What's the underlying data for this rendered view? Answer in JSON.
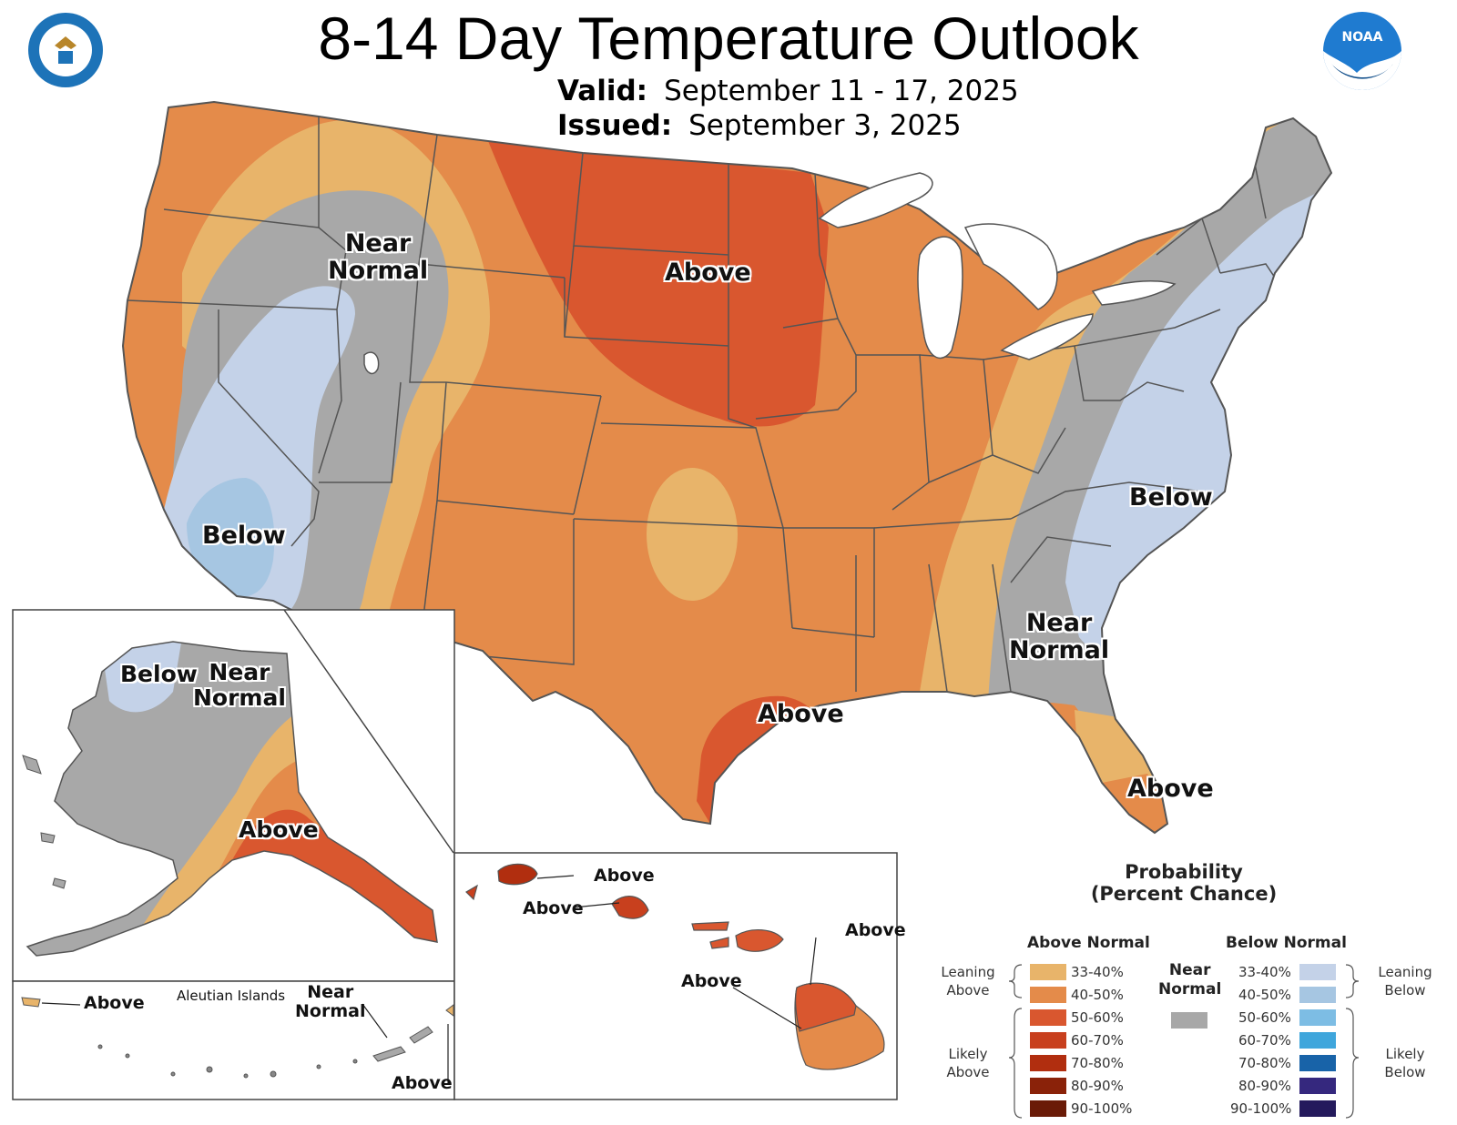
{
  "title": "8-14 Day Temperature Outlook",
  "valid_label": "Valid:",
  "valid_value": "September 11 - 17, 2025",
  "issued_label": "Issued:",
  "issued_value": "September 3, 2025",
  "logos": {
    "left": "department-of-commerce-seal",
    "right": "noaa-logo",
    "right_text": "NOAA"
  },
  "colors": {
    "above_33_40": "#e8b46a",
    "above_40_50": "#e48b4a",
    "above_50_60": "#d9572f",
    "above_60_70": "#c8401e",
    "above_70_80": "#b12e0f",
    "above_80_90": "#8a2209",
    "above_90_100": "#6a1b07",
    "near_normal": "#a8a8a8",
    "below_33_40": "#c4d2e8",
    "below_40_50": "#a6c6e2",
    "below_50_60": "#7dbde4",
    "below_60_70": "#3fa6dc",
    "below_70_80": "#1863a8",
    "below_80_90": "#35287e",
    "below_90_100": "#241a5c",
    "water": "#ffffff",
    "border": "#555555"
  },
  "conus_labels": {
    "near_normal_west_1": "Near",
    "near_normal_west_2": "Normal",
    "above_north": "Above",
    "below_west": "Below",
    "below_east": "Below",
    "near_normal_se_1": "Near",
    "near_normal_se_2": "Normal",
    "above_texas": "Above",
    "above_florida": "Above"
  },
  "alaska_labels": {
    "below": "Below",
    "near_1": "Near",
    "near_2": "Normal",
    "above": "Above"
  },
  "aleutian_labels": {
    "above_left": "Above",
    "title": "Aleutian Islands",
    "near_1": "Near",
    "near_2": "Normal",
    "above_right": "Above"
  },
  "hawaii_labels": {
    "kauai": "Above",
    "oahu": "Above",
    "maui": "Above",
    "big_island": "Above"
  },
  "legend": {
    "title_1": "Probability",
    "title_2": "(Percent Chance)",
    "above_header": "Above Normal",
    "below_header": "Below Normal",
    "near_header_1": "Near",
    "near_header_2": "Normal",
    "leaning_above_1": "Leaning",
    "leaning_above_2": "Above",
    "likely_above_1": "Likely",
    "likely_above_2": "Above",
    "leaning_below_1": "Leaning",
    "leaning_below_2": "Below",
    "likely_below_1": "Likely",
    "likely_below_2": "Below",
    "above_items": [
      "33-40%",
      "40-50%",
      "50-60%",
      "60-70%",
      "70-80%",
      "80-90%",
      "90-100%"
    ],
    "below_items": [
      "33-40%",
      "40-50%",
      "50-60%",
      "60-70%",
      "70-80%",
      "80-90%",
      "90-100%"
    ]
  }
}
